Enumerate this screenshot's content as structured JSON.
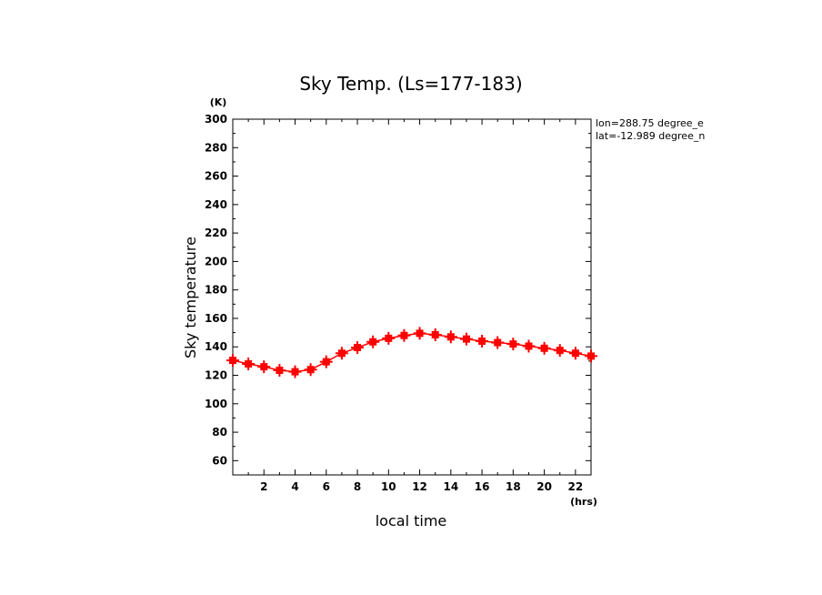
{
  "chart_data": {
    "type": "line",
    "title": "Sky Temp. (Ls=177-183)",
    "xlabel": "local time",
    "ylabel": "Sky temperature",
    "x_unit": "(hrs)",
    "y_unit": "(K)",
    "xlim": [
      0,
      23
    ],
    "ylim": [
      50,
      300
    ],
    "x_ticks": [
      2,
      4,
      6,
      8,
      10,
      12,
      14,
      16,
      18,
      20,
      22
    ],
    "y_ticks": [
      60,
      80,
      100,
      120,
      140,
      160,
      180,
      200,
      220,
      240,
      260,
      280,
      300
    ],
    "annotations": [
      "lon=288.75 degree_e",
      "lat=-12.989 degree_n"
    ],
    "series": [
      {
        "color": "#ff0000",
        "x": [
          0,
          1,
          2,
          3,
          4,
          5,
          6,
          7,
          8,
          9,
          10,
          11,
          12,
          13,
          14,
          15,
          16,
          17,
          18,
          19,
          20,
          21,
          22,
          23
        ],
        "y": [
          130.5,
          128,
          126,
          123.5,
          122.5,
          124,
          129.5,
          135.5,
          139.5,
          143.5,
          146,
          148,
          149.5,
          148.5,
          147,
          145.5,
          144,
          143,
          142,
          140.5,
          139,
          137.5,
          135.5,
          133.5
        ]
      }
    ]
  }
}
